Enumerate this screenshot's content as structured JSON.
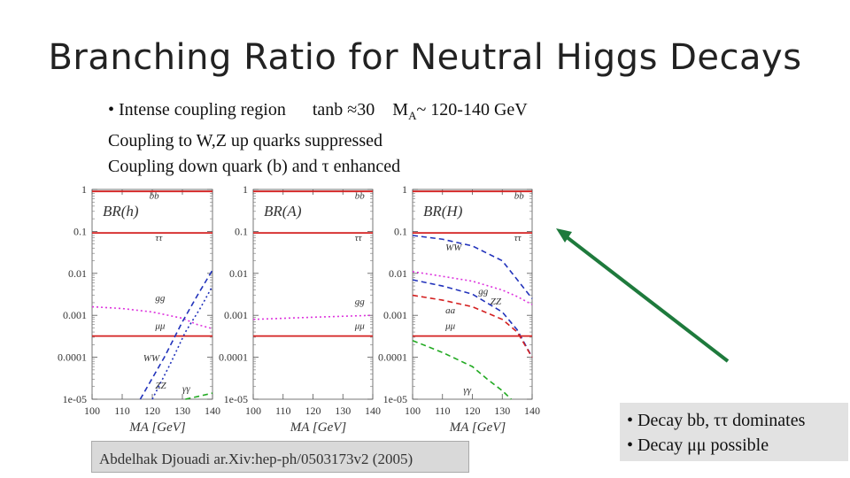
{
  "slide": {
    "title": "Branching Ratio for Neutral Higgs Decays",
    "intro": [
      {
        "bullet": "• ",
        "label": "Intense coupling region",
        "tanb": "tanb ≈30",
        "ma": "M",
        "ma_sub": "A",
        "range": "~ 120-140 GeV"
      },
      {
        "text": "Coupling to W,Z up quarks suppressed"
      },
      {
        "text": "Coupling down quark (b) and τ enhanced"
      }
    ],
    "citation": "Abdelhak Djouadi  ar.Xiv:hep-ph/0503173v2 (2005)",
    "notes": [
      "• Decay bb, ττ dominates",
      "• Decay μμ possible"
    ],
    "arrow_color": "#1e7a3c"
  },
  "chart_data": [
    {
      "type": "line",
      "title": "BR(h)",
      "xlabel": "M_A [GeV]",
      "xlim": [
        100,
        140
      ],
      "ylim": [
        1e-05,
        1
      ],
      "log_y": true,
      "x_ticks": [
        "100",
        "110",
        "120",
        "130",
        "140"
      ],
      "y_ticks": [
        "1",
        "0.1",
        "0.01",
        "0.001",
        "0.0001",
        "1e-05"
      ],
      "series": [
        {
          "name": "bb",
          "color": "#d42020",
          "dash": "solid",
          "x": [
            100,
            140
          ],
          "y": [
            0.9,
            0.9
          ],
          "label_pos": [
            119,
            0.6
          ]
        },
        {
          "name": "ττ",
          "color": "#d42020",
          "dash": "solid",
          "x": [
            100,
            140
          ],
          "y": [
            0.092,
            0.092
          ],
          "label_pos": [
            121,
            0.06
          ]
        },
        {
          "name": "gg",
          "color": "#dd33dd",
          "dash": "dot",
          "x": [
            100,
            110,
            120,
            130,
            135,
            140
          ],
          "y": [
            0.0016,
            0.00145,
            0.0012,
            0.00085,
            0.0006,
            0.00048
          ],
          "label_pos": [
            121,
            0.0022
          ]
        },
        {
          "name": "μμ",
          "color": "#d42020",
          "dash": "solid",
          "x": [
            100,
            140
          ],
          "y": [
            0.00032,
            0.00032
          ],
          "label_pos": [
            121,
            0.00048
          ]
        },
        {
          "name": "WW",
          "color": "#2233bb",
          "dash": "dash",
          "x": [
            116,
            124,
            130,
            135,
            140
          ],
          "y": [
            1e-05,
            0.0001,
            0.0007,
            0.003,
            0.012
          ],
          "label_pos": [
            117,
            8e-05
          ]
        },
        {
          "name": "ZZ",
          "color": "#2233bb",
          "dash": "dot",
          "x": [
            120,
            126,
            131,
            136,
            140
          ],
          "y": [
            1e-05,
            7e-05,
            0.0004,
            0.0015,
            0.005
          ],
          "label_pos": [
            121,
            1.8e-05
          ]
        },
        {
          "name": "γγ",
          "color": "#22aa22",
          "dash": "dash",
          "x": [
            131,
            136,
            140
          ],
          "y": [
            1e-05,
            1.2e-05,
            1.4e-05
          ],
          "label_pos": [
            130,
            1.5e-05
          ]
        }
      ]
    },
    {
      "type": "line",
      "title": "BR(A)",
      "xlabel": "M_A [GeV]",
      "xlim": [
        100,
        140
      ],
      "ylim": [
        1e-05,
        1
      ],
      "log_y": true,
      "x_ticks": [
        "100",
        "110",
        "120",
        "130",
        "140"
      ],
      "y_ticks": [
        "1",
        "0.1",
        "0.01",
        "0.001",
        "0.0001",
        "1e-05"
      ],
      "series": [
        {
          "name": "bb",
          "color": "#d42020",
          "dash": "solid",
          "x": [
            100,
            140
          ],
          "y": [
            0.9,
            0.9
          ],
          "label_pos": [
            134,
            0.6
          ]
        },
        {
          "name": "ττ",
          "color": "#d42020",
          "dash": "solid",
          "x": [
            100,
            140
          ],
          "y": [
            0.092,
            0.092
          ],
          "label_pos": [
            134,
            0.06
          ]
        },
        {
          "name": "gg",
          "color": "#dd33dd",
          "dash": "dot",
          "x": [
            100,
            120,
            140
          ],
          "y": [
            0.0008,
            0.0009,
            0.001
          ],
          "label_pos": [
            134,
            0.0018
          ]
        },
        {
          "name": "μμ",
          "color": "#d42020",
          "dash": "solid",
          "x": [
            100,
            140
          ],
          "y": [
            0.00032,
            0.00032
          ],
          "label_pos": [
            134,
            0.00048
          ]
        }
      ]
    },
    {
      "type": "line",
      "title": "BR(H)",
      "xlabel": "M_A [GeV]",
      "xlim": [
        100,
        140
      ],
      "ylim": [
        1e-05,
        1
      ],
      "log_y": true,
      "x_ticks": [
        "100",
        "110",
        "120",
        "130",
        "140"
      ],
      "y_ticks": [
        "1",
        "0.1",
        "0.01",
        "0.001",
        "0.0001",
        "1e-05"
      ],
      "series": [
        {
          "name": "bb",
          "color": "#d42020",
          "dash": "solid",
          "x": [
            100,
            140
          ],
          "y": [
            0.9,
            0.9
          ],
          "label_pos": [
            134,
            0.6
          ]
        },
        {
          "name": "ττ",
          "color": "#d42020",
          "dash": "solid",
          "x": [
            100,
            140
          ],
          "y": [
            0.092,
            0.092
          ],
          "label_pos": [
            134,
            0.06
          ]
        },
        {
          "name": "WW",
          "color": "#2233bb",
          "dash": "dash",
          "x": [
            100,
            110,
            120,
            130,
            140
          ],
          "y": [
            0.08,
            0.065,
            0.045,
            0.02,
            0.0025
          ],
          "label_pos": [
            111,
            0.035
          ]
        },
        {
          "name": "gg",
          "color": "#dd33dd",
          "dash": "dot",
          "x": [
            100,
            110,
            120,
            130,
            135,
            140
          ],
          "y": [
            0.011,
            0.0085,
            0.0065,
            0.004,
            0.0028,
            0.0018
          ],
          "label_pos": [
            122,
            0.0032
          ]
        },
        {
          "name": "ZZ",
          "color": "#2233bb",
          "dash": "dash",
          "x": [
            100,
            110,
            120,
            130,
            135,
            140
          ],
          "y": [
            0.007,
            0.005,
            0.0032,
            0.0012,
            0.00045,
            0.0001
          ],
          "label_pos": [
            126,
            0.0018
          ]
        },
        {
          "name": "aa",
          "color": "#d42020",
          "dash": "dash",
          "x": [
            100,
            110,
            120,
            130,
            135,
            140
          ],
          "y": [
            0.003,
            0.0023,
            0.0016,
            0.0008,
            0.0004,
            0.0001
          ],
          "label_pos": [
            111,
            0.0011
          ]
        },
        {
          "name": "μμ",
          "color": "#d42020",
          "dash": "solid",
          "x": [
            100,
            140
          ],
          "y": [
            0.00032,
            0.00032
          ],
          "label_pos": [
            111,
            0.00048
          ]
        },
        {
          "name": "γγ",
          "color": "#22aa22",
          "dash": "dash",
          "x": [
            100,
            110,
            120,
            125,
            130,
            133
          ],
          "y": [
            0.00025,
            0.00013,
            6e-05,
            3e-05,
            1.6e-05,
            1e-05
          ],
          "label_pos": [
            117,
            1.4e-05
          ]
        }
      ]
    }
  ]
}
